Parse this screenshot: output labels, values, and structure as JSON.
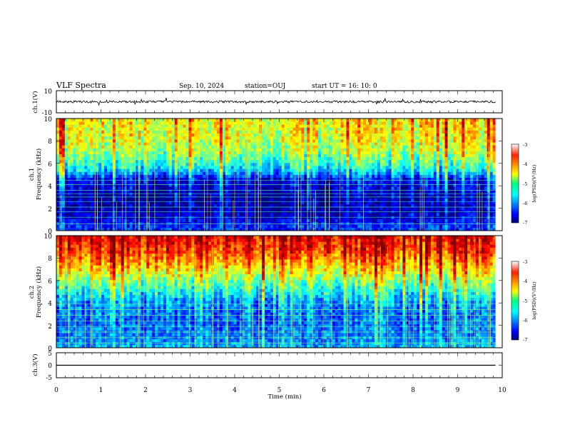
{
  "chart_data": {
    "type": "heatmap",
    "title": "VLF Spectra",
    "date": "Sep. 10, 2024",
    "station": "station=OUJ",
    "start_ut": "start  UT  =   16: 10: 0",
    "xlabel": "Time  (min)",
    "xlim": [
      0,
      10
    ],
    "x_ticks": [
      "0",
      "1",
      "2",
      "3",
      "4",
      "5",
      "6",
      "7",
      "8",
      "9",
      "10"
    ],
    "data_end_min": 9.85,
    "panels": [
      {
        "id": "ch1-waveform",
        "kind": "line",
        "ylabel": "ch.1(V)",
        "ylim": [
          -10,
          10
        ],
        "y_ticks": [
          "10",
          "-10"
        ],
        "baseline": 0,
        "noise_amplitude": 1.0,
        "spike_amplitude": 3.5
      },
      {
        "id": "ch1-spectrogram",
        "kind": "heatmap",
        "ylabel_line1": "ch.1",
        "ylabel_line2": "Frequency  (kHz)",
        "ylim": [
          0,
          10
        ],
        "y_ticks": [
          "10",
          "8",
          "6",
          "4",
          "2",
          "0"
        ],
        "colorbar_label": "log(PSD)(V²/Hz)",
        "colorbar_ticks": [
          "-3",
          "-4",
          "-5",
          "-6",
          "-7"
        ],
        "color_range": [
          -7,
          -3
        ],
        "psd_profile": [
          {
            "freq_khz": 0.0,
            "log_psd": -6.3
          },
          {
            "freq_khz": 0.5,
            "log_psd": -6.4
          },
          {
            "freq_khz": 1.5,
            "log_psd": -6.8
          },
          {
            "freq_khz": 3.0,
            "log_psd": -6.9
          },
          {
            "freq_khz": 4.5,
            "log_psd": -6.6
          },
          {
            "freq_khz": 5.5,
            "log_psd": -5.6
          },
          {
            "freq_khz": 7.0,
            "log_psd": -4.9
          },
          {
            "freq_khz": 8.5,
            "log_psd": -4.6
          },
          {
            "freq_khz": 10.0,
            "log_psd": -4.5
          }
        ],
        "line_freqs_khz": [
          0.6,
          1.2,
          1.7,
          2.1,
          2.6,
          3.0,
          3.3,
          3.6,
          4.1,
          4.5
        ]
      },
      {
        "id": "ch2-spectrogram",
        "kind": "heatmap",
        "ylabel_line1": "ch.2",
        "ylabel_line2": "Frequency  (kHz)",
        "ylim": [
          0,
          10
        ],
        "y_ticks": [
          "10",
          "8",
          "6",
          "4",
          "2",
          "0"
        ],
        "colorbar_label": "log(PSD)(V²/Hz)",
        "colorbar_ticks": [
          "-3",
          "-4",
          "-5",
          "-6",
          "-7"
        ],
        "color_range": [
          -7,
          -3
        ],
        "psd_profile": [
          {
            "freq_khz": 0.0,
            "log_psd": -5.8
          },
          {
            "freq_khz": 1.0,
            "log_psd": -6.0
          },
          {
            "freq_khz": 2.5,
            "log_psd": -6.1
          },
          {
            "freq_khz": 4.0,
            "log_psd": -5.9
          },
          {
            "freq_khz": 5.5,
            "log_psd": -5.2
          },
          {
            "freq_khz": 7.0,
            "log_psd": -4.4
          },
          {
            "freq_khz": 8.5,
            "log_psd": -3.7
          },
          {
            "freq_khz": 10.0,
            "log_psd": -3.4
          }
        ],
        "line_freqs_khz": [
          0.4,
          0.9,
          1.4,
          1.9,
          2.4,
          2.9,
          3.4,
          3.9
        ]
      },
      {
        "id": "ch3-waveform",
        "kind": "line",
        "ylabel": "ch.3(V)",
        "ylim": [
          -5,
          5
        ],
        "y_ticks": [
          "5",
          "0",
          "-5"
        ],
        "baseline": 0,
        "noise_amplitude": 0,
        "spike_amplitude": 0
      }
    ]
  }
}
